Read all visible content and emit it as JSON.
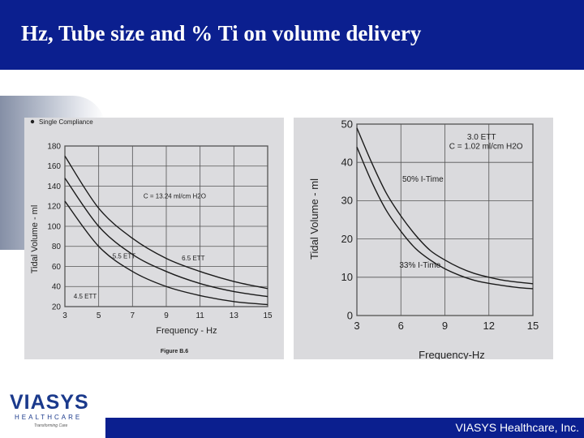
{
  "slide": {
    "title": "Hz, Tube size and % Ti on volume delivery",
    "footer": "VIASYS Healthcare, Inc.",
    "logo": {
      "name": "VIASYS",
      "sub": "HEALTHCARE",
      "tagline": "Transforming Care"
    },
    "colors": {
      "header": "#0b1f8f",
      "paper": "#dcdcdf",
      "ink": "#222222"
    }
  },
  "chart_data": [
    {
      "type": "line",
      "title": "",
      "legend_text": "Single Compliance",
      "caption": "Figure B.6",
      "xlabel": "Frequency - Hz",
      "ylabel": "Tidal Volume - ml",
      "xlim": [
        3,
        15
      ],
      "ylim": [
        20,
        180
      ],
      "xticks": [
        3,
        5,
        7,
        9,
        11,
        13,
        15
      ],
      "yticks": [
        20,
        40,
        60,
        80,
        100,
        120,
        140,
        160,
        180
      ],
      "annotations": [
        {
          "text": "C = 13.24 ml/cm H2O",
          "x": 9.5,
          "y": 128
        },
        {
          "text": "5.5 ETT",
          "x": 6.5,
          "y": 68
        },
        {
          "text": "6.5 ETT",
          "x": 10.6,
          "y": 66
        },
        {
          "text": "4.5 ETT",
          "x": 4.2,
          "y": 28
        }
      ],
      "series": [
        {
          "name": "6.5 ETT",
          "x": [
            3,
            5,
            7,
            9,
            11,
            13,
            15
          ],
          "y": [
            170,
            118,
            88,
            68,
            55,
            45,
            38
          ]
        },
        {
          "name": "5.5 ETT",
          "x": [
            3,
            5,
            7,
            9,
            11,
            13,
            15
          ],
          "y": [
            148,
            100,
            72,
            55,
            43,
            35,
            30
          ]
        },
        {
          "name": "4.5 ETT",
          "x": [
            3,
            5,
            7,
            9,
            11,
            13,
            15
          ],
          "y": [
            125,
            80,
            55,
            40,
            31,
            25,
            22
          ]
        }
      ]
    },
    {
      "type": "line",
      "title": "",
      "xlabel": "Frequency-Hz",
      "ylabel": "Tidal Volume - ml",
      "xlim": [
        3,
        15
      ],
      "ylim": [
        0,
        50
      ],
      "xticks": [
        3,
        6,
        9,
        12,
        15
      ],
      "yticks": [
        0,
        10,
        20,
        30,
        40,
        50
      ],
      "annotations": [
        {
          "text": "3.0 ETT",
          "x": 11.5,
          "y": 46
        },
        {
          "text": "C = 1.02 ml/cm H2O",
          "x": 11.8,
          "y": 43.5
        },
        {
          "text": "50% I-Time",
          "x": 7.5,
          "y": 35
        },
        {
          "text": "33% I-Time",
          "x": 7.3,
          "y": 12.5
        }
      ],
      "series": [
        {
          "name": "50% I-Time",
          "x": [
            3,
            4,
            5,
            6,
            7,
            8,
            9,
            10,
            11,
            12,
            13,
            14,
            15
          ],
          "y": [
            49,
            40,
            32,
            26,
            21,
            17,
            14.5,
            12.5,
            11,
            10,
            9.2,
            8.7,
            8.3
          ]
        },
        {
          "name": "33% I-Time",
          "x": [
            3,
            4,
            5,
            6,
            7,
            8,
            9,
            10,
            11,
            12,
            13,
            14,
            15
          ],
          "y": [
            44,
            35,
            27.5,
            22,
            17.5,
            14.5,
            12.2,
            10.5,
            9.2,
            8.4,
            7.8,
            7.3,
            7
          ]
        }
      ]
    }
  ]
}
